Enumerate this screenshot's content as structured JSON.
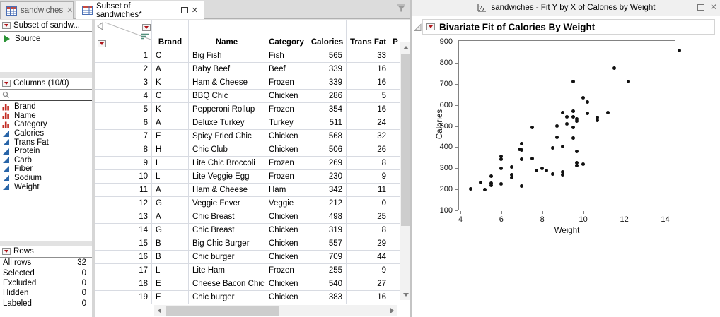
{
  "tabs": [
    {
      "label": "sandwiches",
      "active": false,
      "close_label": "x"
    },
    {
      "label": "Subset of sandwiches*",
      "active": true,
      "close_label": "x"
    }
  ],
  "tabbar_icons": {
    "funnel": "data-filter-funnel"
  },
  "sidebar": {
    "table_panel": {
      "title": "Subset of sandw...",
      "source_label": "Source"
    },
    "columns_panel": {
      "title": "Columns (10/0)",
      "items": [
        {
          "name": "Brand",
          "type": "nominal"
        },
        {
          "name": "Name",
          "type": "nominal"
        },
        {
          "name": "Category",
          "type": "nominal"
        },
        {
          "name": "Calories",
          "type": "continuous"
        },
        {
          "name": "Trans Fat",
          "type": "continuous"
        },
        {
          "name": "Protein",
          "type": "continuous"
        },
        {
          "name": "Carb",
          "type": "continuous"
        },
        {
          "name": "Fiber",
          "type": "continuous"
        },
        {
          "name": "Sodium",
          "type": "continuous"
        },
        {
          "name": "Weight",
          "type": "continuous"
        }
      ]
    },
    "rows_panel": {
      "title": "Rows",
      "stats": [
        {
          "label": "All rows",
          "value": "32"
        },
        {
          "label": "Selected",
          "value": "0"
        },
        {
          "label": "Excluded",
          "value": "0"
        },
        {
          "label": "Hidden",
          "value": "0"
        },
        {
          "label": "Labeled",
          "value": "0"
        }
      ]
    }
  },
  "table": {
    "columns": [
      "Brand",
      "Name",
      "Category",
      "Calories",
      "Trans Fat",
      "P"
    ],
    "rows": [
      [
        1,
        "C",
        "Big Fish",
        "Fish",
        565,
        33
      ],
      [
        2,
        "A",
        "Baby Beef",
        "Beef",
        339,
        16
      ],
      [
        3,
        "K",
        "Ham & Cheese",
        "Frozen",
        339,
        16
      ],
      [
        4,
        "C",
        "BBQ Chic",
        "Chicken",
        286,
        5
      ],
      [
        5,
        "K",
        "Pepperoni Rollup",
        "Frozen",
        354,
        16
      ],
      [
        6,
        "A",
        "Deluxe Turkey",
        "Turkey",
        511,
        24
      ],
      [
        7,
        "E",
        "Spicy Fried Chic",
        "Chicken",
        568,
        32
      ],
      [
        8,
        "H",
        "Chic Club",
        "Chicken",
        506,
        26
      ],
      [
        9,
        "L",
        "Lite Chic Broccoli",
        "Frozen",
        269,
        8
      ],
      [
        10,
        "L",
        "Lite Veggie Egg",
        "Frozen",
        230,
        9
      ],
      [
        11,
        "A",
        "Ham & Cheese",
        "Ham",
        342,
        11
      ],
      [
        12,
        "G",
        "Veggie Fever",
        "Veggie",
        212,
        0
      ],
      [
        13,
        "A",
        "Chic Breast",
        "Chicken",
        498,
        25
      ],
      [
        14,
        "G",
        "Chic Breast",
        "Chicken",
        319,
        8
      ],
      [
        15,
        "B",
        "Big Chic Burger",
        "Chicken",
        557,
        29
      ],
      [
        16,
        "B",
        "Chic burger",
        "Chicken",
        709,
        44
      ],
      [
        17,
        "L",
        "Lite Ham",
        "Frozen",
        255,
        9
      ],
      [
        18,
        "E",
        "Cheese Bacon Chic",
        "Chicken",
        540,
        27
      ],
      [
        19,
        "E",
        "Chic burger",
        "Chicken",
        383,
        16
      ]
    ]
  },
  "report": {
    "window_title": "sandwiches - Fit Y by X of Calories by Weight"
  },
  "chart_data": {
    "type": "scatter",
    "title": "Bivariate Fit of Calories By Weight",
    "xlabel": "Weight",
    "ylabel": "Calories",
    "xlim": [
      3.9,
      14.5
    ],
    "ylim": [
      100,
      907
    ],
    "x_ticks": [
      4,
      6,
      8,
      10,
      12,
      14
    ],
    "y_ticks": [
      100,
      200,
      300,
      400,
      500,
      600,
      700,
      800,
      900
    ],
    "grid": false,
    "legend": "none",
    "marker_color": "#111111",
    "points": [
      [
        4.5,
        203
      ],
      [
        5.0,
        232
      ],
      [
        5.2,
        200
      ],
      [
        5.5,
        262
      ],
      [
        5.5,
        228
      ],
      [
        5.5,
        218
      ],
      [
        6.0,
        355
      ],
      [
        6.0,
        343
      ],
      [
        6.0,
        298
      ],
      [
        6.0,
        227
      ],
      [
        6.5,
        305
      ],
      [
        6.5,
        268
      ],
      [
        6.5,
        257
      ],
      [
        6.9,
        390
      ],
      [
        7.0,
        415
      ],
      [
        7.0,
        385
      ],
      [
        7.0,
        343
      ],
      [
        7.0,
        215
      ],
      [
        7.5,
        495
      ],
      [
        7.5,
        345
      ],
      [
        7.7,
        288
      ],
      [
        8.0,
        300
      ],
      [
        8.2,
        290
      ],
      [
        8.5,
        396
      ],
      [
        8.5,
        272
      ],
      [
        8.7,
        500
      ],
      [
        8.7,
        445
      ],
      [
        9.0,
        565
      ],
      [
        9.0,
        403
      ],
      [
        9.0,
        281
      ],
      [
        9.0,
        270
      ],
      [
        9.2,
        545
      ],
      [
        9.2,
        510
      ],
      [
        9.5,
        710
      ],
      [
        9.5,
        570
      ],
      [
        9.5,
        545
      ],
      [
        9.5,
        493
      ],
      [
        9.5,
        443
      ],
      [
        9.7,
        533
      ],
      [
        9.7,
        524
      ],
      [
        9.7,
        380
      ],
      [
        9.7,
        325
      ],
      [
        9.7,
        313
      ],
      [
        10.0,
        635
      ],
      [
        10.0,
        320
      ],
      [
        10.2,
        615
      ],
      [
        10.2,
        560
      ],
      [
        10.7,
        540
      ],
      [
        10.7,
        527
      ],
      [
        11.2,
        565
      ],
      [
        11.5,
        775
      ],
      [
        12.2,
        710
      ],
      [
        14.7,
        860
      ]
    ]
  },
  "colors": {
    "accent_red_triangle": "#b0151a",
    "nominal_icon_red": "#c22a21",
    "continuous_icon_blue": "#2965a8",
    "source_green": "#2a9235"
  }
}
